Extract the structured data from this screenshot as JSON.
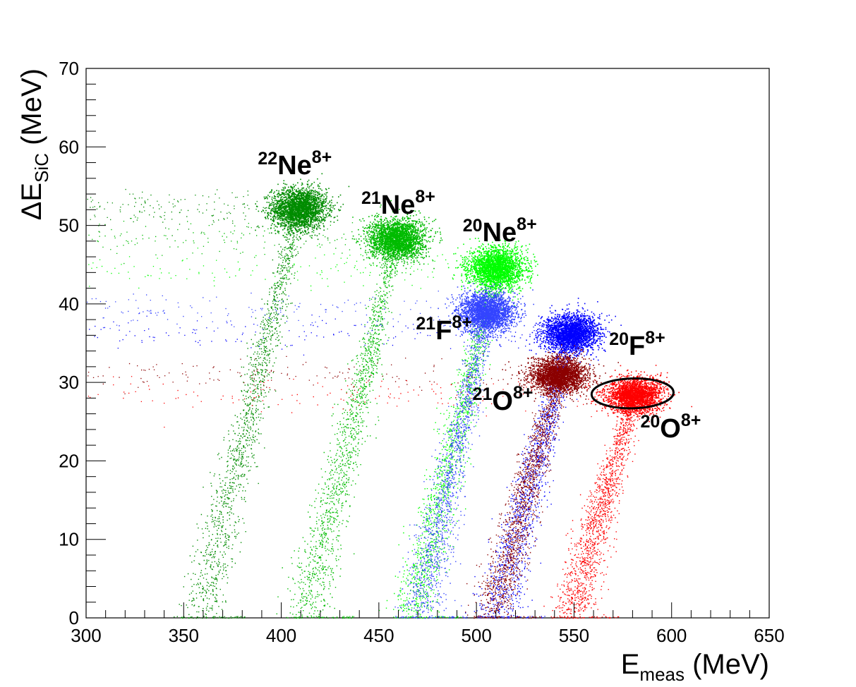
{
  "chart_data": {
    "type": "scatter",
    "title": "",
    "xlabel": {
      "main": "E",
      "sub": "meas",
      "unit": " (MeV)"
    },
    "ylabel": {
      "prefix": "ΔE",
      "sub": "SiC",
      "unit": " (MeV)"
    },
    "xlim": [
      300,
      650
    ],
    "ylim": [
      0,
      70
    ],
    "x_ticks": [
      300,
      350,
      400,
      450,
      500,
      550,
      600,
      650
    ],
    "y_ticks": [
      0,
      10,
      20,
      30,
      40,
      50,
      60,
      70
    ],
    "grid": false,
    "legend": "none",
    "series": [
      {
        "label": {
          "mass": "22",
          "sym": "Ne",
          "charge": "8+"
        },
        "color": "#008c00",
        "blob_center": [
          409,
          52.2
        ],
        "blob_sigma": [
          7,
          1.3
        ],
        "tail_start": [
          358,
          0.5
        ],
        "label_pos": [
          388,
          56.5
        ]
      },
      {
        "label": {
          "mass": "21",
          "sym": "Ne",
          "charge": "8+"
        },
        "color": "#00bb00",
        "blob_center": [
          459,
          48.3
        ],
        "blob_sigma": [
          7,
          1.3
        ],
        "tail_start": [
          412,
          0.5
        ],
        "label_pos": [
          441,
          51.5
        ]
      },
      {
        "label": {
          "mass": "20",
          "sym": "Ne",
          "charge": "8+"
        },
        "color": "#00ff00",
        "blob_center": [
          510,
          44.6
        ],
        "blob_sigma": [
          7,
          1.3
        ],
        "tail_start": [
          467,
          0.5
        ],
        "label_pos": [
          493,
          48.0
        ]
      },
      {
        "label": {
          "mass": "21",
          "sym": "F",
          "charge": "8+"
        },
        "color": "#3344ff",
        "blob_center": [
          505,
          39.0
        ],
        "blob_sigma": [
          7,
          1.2
        ],
        "tail_start": [
          470,
          0.5
        ],
        "label_pos": [
          469,
          35.5
        ]
      },
      {
        "label": {
          "mass": "20",
          "sym": "F",
          "charge": "8+"
        },
        "color": "#0000ff",
        "blob_center": [
          548,
          36.3
        ],
        "blob_sigma": [
          7,
          1.2
        ],
        "tail_start": [
          510,
          0.5
        ],
        "label_pos": [
          568,
          33.5
        ]
      },
      {
        "label": {
          "mass": "21",
          "sym": "O",
          "charge": "8+"
        },
        "color": "#8b0000",
        "blob_center": [
          542,
          30.9
        ],
        "blob_sigma": [
          7,
          1.1
        ],
        "tail_start": [
          508,
          0.5
        ],
        "label_pos": [
          498,
          26.5
        ]
      },
      {
        "label": {
          "mass": "20",
          "sym": "O",
          "charge": "8+"
        },
        "color": "#ff0000",
        "blob_center": [
          581,
          28.4
        ],
        "blob_sigma": [
          7,
          1.1
        ],
        "tail_start": [
          548,
          0.5
        ],
        "label_pos": [
          584,
          23.0
        ]
      }
    ],
    "annotations": [
      {
        "type": "contour",
        "shape": "ellipse",
        "center": [
          580,
          28.6
        ],
        "rx": 21,
        "ry": 1.9,
        "color": "#000000"
      }
    ]
  }
}
